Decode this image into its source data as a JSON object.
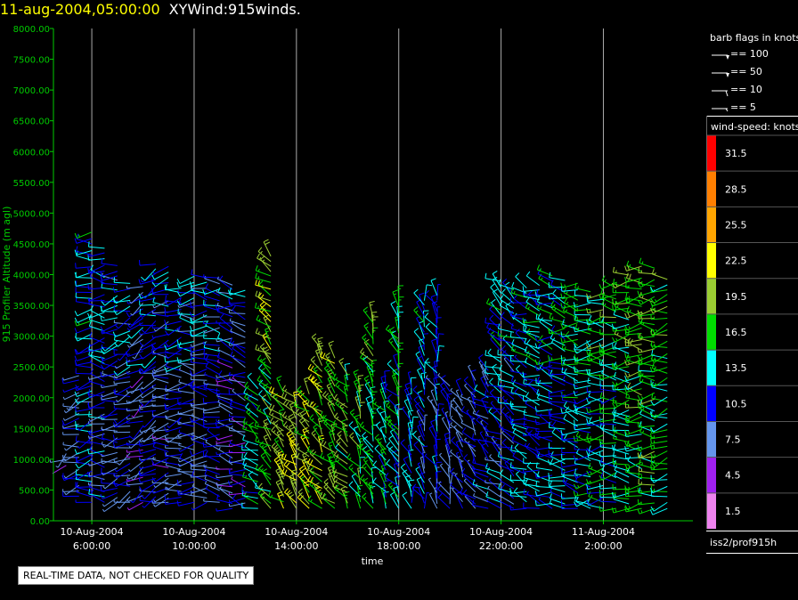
{
  "header": {
    "date": "11-aug-2004,05:00:00",
    "product": "XYWind:915winds."
  },
  "barb_legend": {
    "title": "barb flags in knots",
    "entries": [
      {
        "label": "== 100",
        "value": 100
      },
      {
        "label": "== 50",
        "value": 50
      },
      {
        "label": "== 10",
        "value": 10
      },
      {
        "label": "== 5",
        "value": 5
      }
    ]
  },
  "speed_legend": {
    "title": "wind-speed: knots",
    "bins": [
      {
        "label": "31.5",
        "color": "#ff0000"
      },
      {
        "label": "28.5",
        "color": "#ff7f00"
      },
      {
        "label": "25.5",
        "color": "#ffa500"
      },
      {
        "label": "22.5",
        "color": "#ffff00"
      },
      {
        "label": "19.5",
        "color": "#9acd32"
      },
      {
        "label": "16.5",
        "color": "#00dd00"
      },
      {
        "label": "13.5",
        "color": "#00ffff"
      },
      {
        "label": "10.5",
        "color": "#0000ff"
      },
      {
        "label": "7.5",
        "color": "#6495ed"
      },
      {
        "label": "4.5",
        "color": "#a020f0"
      },
      {
        "label": "1.5",
        "color": "#ee82ee"
      }
    ]
  },
  "source": "iss2/prof915h",
  "qc_note": "REAL-TIME DATA, NOT CHECKED FOR QUALITY",
  "colors": {
    "axis": "#00cc00",
    "grid": "#aaaaaa",
    "tick_labels": "#00cc00"
  },
  "chart_data": {
    "type": "scatter",
    "xlabel": "time",
    "ylabel": "915 Profiler Altitude (m agl)",
    "ylim": [
      0,
      8000
    ],
    "yticks": [
      "0.00",
      "500.00",
      "1000.00",
      "1500.00",
      "2000.00",
      "2500.00",
      "3000.00",
      "3500.00",
      "4000.00",
      "4500.00",
      "5000.00",
      "5500.00",
      "6000.00",
      "6500.00",
      "7000.00",
      "7500.00",
      "8000.00"
    ],
    "xlim_hours": [
      4.5,
      29.5
    ],
    "xticks": [
      {
        "hour": 6,
        "line1": "10-Aug-2004",
        "line2": "6:00:00"
      },
      {
        "hour": 10,
        "line1": "10-Aug-2004",
        "line2": "10:00:00"
      },
      {
        "hour": 14,
        "line1": "10-Aug-2004",
        "line2": "14:00:00"
      },
      {
        "hour": 18,
        "line1": "10-Aug-2004",
        "line2": "18:00:00"
      },
      {
        "hour": 22,
        "line1": "10-Aug-2004",
        "line2": "22:00:00"
      },
      {
        "hour": 26,
        "line1": "11-Aug-2004",
        "line2": "2:00:00"
      }
    ],
    "grid": "vertical",
    "legend_placement": "right",
    "series_note": "wind barbs, colored by wind speed (knots)",
    "profiles": [
      {
        "hour": 5.0,
        "bottom": 900,
        "top": 1100,
        "direction": 230,
        "speed": 6
      },
      {
        "hour": 5.5,
        "bottom": 400,
        "top": 2400,
        "direction": 250,
        "speed": 9
      },
      {
        "hour": 6.0,
        "bottom": 300,
        "top": 4700,
        "direction": 260,
        "speed": 11
      },
      {
        "hour": 6.5,
        "bottom": 300,
        "top": 4500,
        "direction": 270,
        "speed": 10
      },
      {
        "hour": 7.0,
        "bottom": 300,
        "top": 4200,
        "direction": 260,
        "speed": 9
      },
      {
        "hour": 7.5,
        "bottom": 300,
        "top": 3900,
        "direction": 250,
        "speed": 9
      },
      {
        "hour": 8.0,
        "bottom": 300,
        "top": 3900,
        "direction": 240,
        "speed": 8
      },
      {
        "hour": 8.5,
        "bottom": 300,
        "top": 4200,
        "direction": 250,
        "speed": 9
      },
      {
        "hour": 9.0,
        "bottom": 300,
        "top": 4200,
        "direction": 260,
        "speed": 8
      },
      {
        "hour": 9.5,
        "bottom": 300,
        "top": 3800,
        "direction": 260,
        "speed": 9
      },
      {
        "hour": 10.0,
        "bottom": 300,
        "top": 4000,
        "direction": 270,
        "speed": 9
      },
      {
        "hour": 10.5,
        "bottom": 300,
        "top": 4000,
        "direction": 270,
        "speed": 9
      },
      {
        "hour": 11.0,
        "bottom": 300,
        "top": 4000,
        "direction": 280,
        "speed": 9
      },
      {
        "hour": 11.5,
        "bottom": 200,
        "top": 3900,
        "direction": 280,
        "speed": 8
      },
      {
        "hour": 12.0,
        "bottom": 200,
        "top": 3800,
        "direction": 280,
        "speed": 8
      },
      {
        "hour": 12.5,
        "bottom": 200,
        "top": 2200,
        "direction": 300,
        "speed": 14
      },
      {
        "hour": 13.0,
        "bottom": 200,
        "top": 4300,
        "direction": 310,
        "speed": 17
      },
      {
        "hour": 13.5,
        "bottom": 200,
        "top": 2100,
        "direction": 320,
        "speed": 20
      },
      {
        "hour": 14.0,
        "bottom": 200,
        "top": 2100,
        "direction": 320,
        "speed": 21
      },
      {
        "hour": 14.5,
        "bottom": 200,
        "top": 2100,
        "direction": 320,
        "speed": 20
      },
      {
        "hour": 15.0,
        "bottom": 200,
        "top": 2800,
        "direction": 320,
        "speed": 19
      },
      {
        "hour": 15.5,
        "bottom": 200,
        "top": 2700,
        "direction": 320,
        "speed": 18
      },
      {
        "hour": 16.0,
        "bottom": 200,
        "top": 2400,
        "direction": 320,
        "speed": 17
      },
      {
        "hour": 16.5,
        "bottom": 200,
        "top": 2200,
        "direction": 330,
        "speed": 16
      },
      {
        "hour": 17.0,
        "bottom": 200,
        "top": 3400,
        "direction": 330,
        "speed": 15
      },
      {
        "hour": 17.5,
        "bottom": 200,
        "top": 2200,
        "direction": 330,
        "speed": 14
      },
      {
        "hour": 18.0,
        "bottom": 200,
        "top": 3600,
        "direction": 330,
        "speed": 13
      },
      {
        "hour": 18.5,
        "bottom": 200,
        "top": 2200,
        "direction": 340,
        "speed": 12
      },
      {
        "hour": 19.0,
        "bottom": 200,
        "top": 3600,
        "direction": 340,
        "speed": 11
      },
      {
        "hour": 19.5,
        "bottom": 200,
        "top": 3700,
        "direction": 340,
        "speed": 10
      },
      {
        "hour": 20.0,
        "bottom": 200,
        "top": 2200,
        "direction": 340,
        "speed": 9
      },
      {
        "hour": 20.5,
        "bottom": 200,
        "top": 2100,
        "direction": 330,
        "speed": 9
      },
      {
        "hour": 21.0,
        "bottom": 200,
        "top": 2300,
        "direction": 320,
        "speed": 9
      },
      {
        "hour": 21.5,
        "bottom": 200,
        "top": 2500,
        "direction": 310,
        "speed": 10
      },
      {
        "hour": 22.0,
        "bottom": 200,
        "top": 3900,
        "direction": 300,
        "speed": 11
      },
      {
        "hour": 22.5,
        "bottom": 200,
        "top": 3800,
        "direction": 300,
        "speed": 11
      },
      {
        "hour": 23.0,
        "bottom": 200,
        "top": 3800,
        "direction": 290,
        "speed": 12
      },
      {
        "hour": 23.5,
        "bottom": 200,
        "top": 3900,
        "direction": 290,
        "speed": 12
      },
      {
        "hour": 24.0,
        "bottom": 200,
        "top": 4000,
        "direction": 280,
        "speed": 12
      },
      {
        "hour": 24.5,
        "bottom": 200,
        "top": 4000,
        "direction": 280,
        "speed": 12
      },
      {
        "hour": 25.0,
        "bottom": 200,
        "top": 3900,
        "direction": 280,
        "speed": 13
      },
      {
        "hour": 25.5,
        "bottom": 200,
        "top": 3800,
        "direction": 270,
        "speed": 13
      },
      {
        "hour": 26.0,
        "bottom": 200,
        "top": 3700,
        "direction": 270,
        "speed": 14
      },
      {
        "hour": 26.5,
        "bottom": 200,
        "top": 3900,
        "direction": 270,
        "speed": 14
      },
      {
        "hour": 27.0,
        "bottom": 200,
        "top": 4000,
        "direction": 270,
        "speed": 15
      },
      {
        "hour": 27.5,
        "bottom": 200,
        "top": 4200,
        "direction": 270,
        "speed": 16
      },
      {
        "hour": 28.0,
        "bottom": 200,
        "top": 4200,
        "direction": 270,
        "speed": 16
      },
      {
        "hour": 28.5,
        "bottom": 200,
        "top": 4000,
        "direction": 260,
        "speed": 15
      }
    ]
  }
}
